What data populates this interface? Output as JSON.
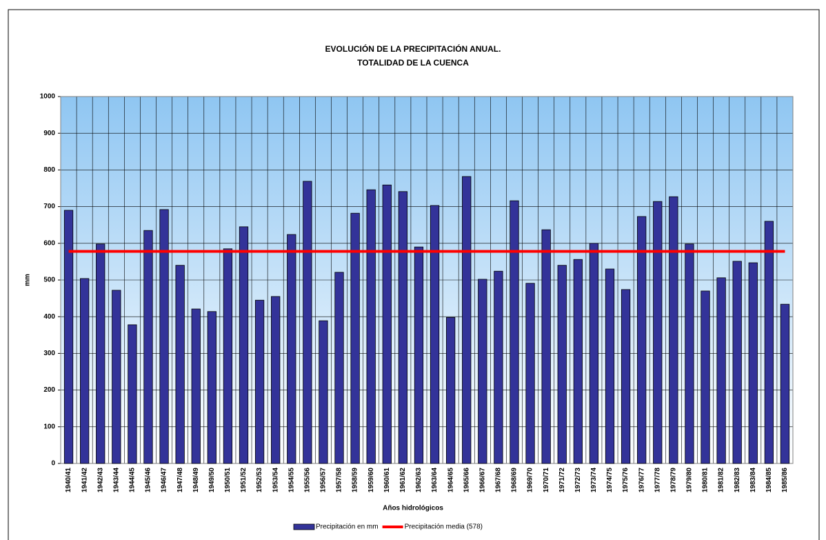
{
  "chart_data": {
    "type": "bar",
    "title": [
      "EVOLUCIÓN DE LA PRECIPITACIÓN ANUAL.",
      "TOTALIDAD DE LA CUENCA"
    ],
    "x_label": "Años hidrológicos",
    "y_label": "mm",
    "categories": [
      "1940/41",
      "1941/42",
      "1942/43",
      "1943/44",
      "1944/45",
      "1945/46",
      "1946/47",
      "1947/48",
      "1948/49",
      "1949/50",
      "1950/51",
      "1951/52",
      "1952/53",
      "1953/54",
      "1954/55",
      "1955/56",
      "1956/57",
      "1957/58",
      "1958/59",
      "1959/60",
      "1960/61",
      "1961/62",
      "1962/63",
      "1963/64",
      "1964/65",
      "1965/66",
      "1966/67",
      "1967/68",
      "1968/69",
      "1969/70",
      "1970/71",
      "1971/72",
      "1972/73",
      "1973/74",
      "1974/75",
      "1975/76",
      "1976/77",
      "1977/78",
      "1978/79",
      "1979/80",
      "1980/81",
      "1981/82",
      "1982/83",
      "1983/84",
      "1984/85",
      "1985/86"
    ],
    "series": [
      {
        "name": "Precipitación en mm",
        "type": "bar",
        "color": "#333399",
        "values": [
          690,
          504,
          598,
          472,
          378,
          635,
          692,
          540,
          421,
          414,
          585,
          645,
          445,
          455,
          624,
          769,
          389,
          521,
          682,
          746,
          759,
          741,
          590,
          703,
          398,
          782,
          502,
          524,
          716,
          491,
          637,
          540,
          556,
          600,
          530,
          474,
          673,
          714,
          727,
          598,
          470,
          506,
          551,
          547,
          660,
          434
        ]
      },
      {
        "name": "Precipitación media (578)",
        "type": "line",
        "color": "#ff0000",
        "values": [
          578,
          578,
          578,
          578,
          578,
          578,
          578,
          578,
          578,
          578,
          578,
          578,
          578,
          578,
          578,
          578,
          578,
          578,
          578,
          578,
          578,
          578,
          578,
          578,
          578,
          578,
          578,
          578,
          578,
          578,
          578,
          578,
          578,
          578,
          578,
          578,
          578,
          578,
          578,
          578,
          578,
          578,
          578,
          578,
          578,
          578
        ]
      }
    ],
    "ylim": [
      0,
      1000
    ],
    "yticks": [
      0,
      100,
      200,
      300,
      400,
      500,
      600,
      700,
      800,
      900,
      1000
    ],
    "grid": true,
    "legend": "bottom"
  }
}
